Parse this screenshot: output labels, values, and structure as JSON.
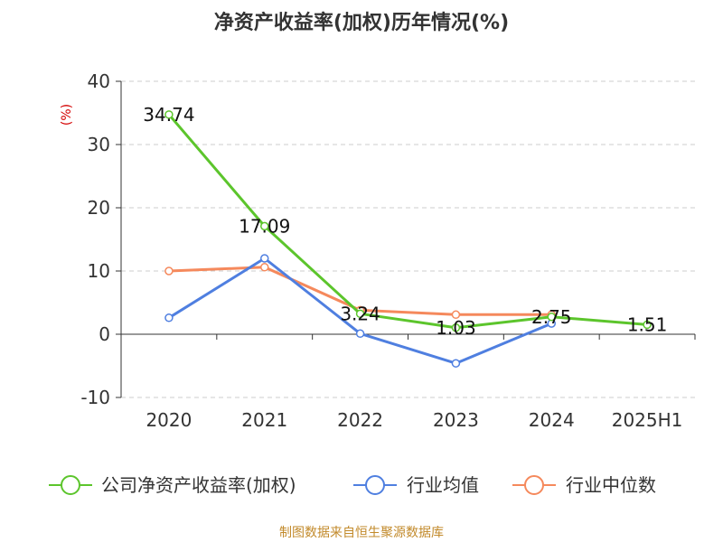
{
  "chart_data": {
    "type": "line",
    "title": "净资产收益率(加权)历年情况(%)",
    "ylabel": "(%)",
    "xlabel": "",
    "categories": [
      "2020",
      "2021",
      "2022",
      "2023",
      "2024",
      "2025H1"
    ],
    "ylim": [
      -10,
      40
    ],
    "yticks": [
      40,
      30,
      20,
      10,
      0,
      -10
    ],
    "grid": true,
    "legend_position": "bottom",
    "series": [
      {
        "name": "公司净资产收益率(加权)",
        "color": "#5cc52c",
        "values": [
          34.74,
          17.09,
          3.24,
          1.03,
          2.75,
          1.51
        ],
        "labels": [
          "34.74",
          "17.09",
          "3.24",
          "1.03",
          "2.75",
          "1.51"
        ]
      },
      {
        "name": "行业均值",
        "color": "#4f7fe0",
        "values": [
          2.6,
          12.0,
          0.1,
          -4.6,
          1.7,
          null
        ]
      },
      {
        "name": "行业中位数",
        "color": "#f5895c",
        "values": [
          10.0,
          10.6,
          3.8,
          3.1,
          3.1,
          null
        ]
      }
    ]
  },
  "footer": {
    "source": "制图数据来自恒生聚源数据库"
  }
}
